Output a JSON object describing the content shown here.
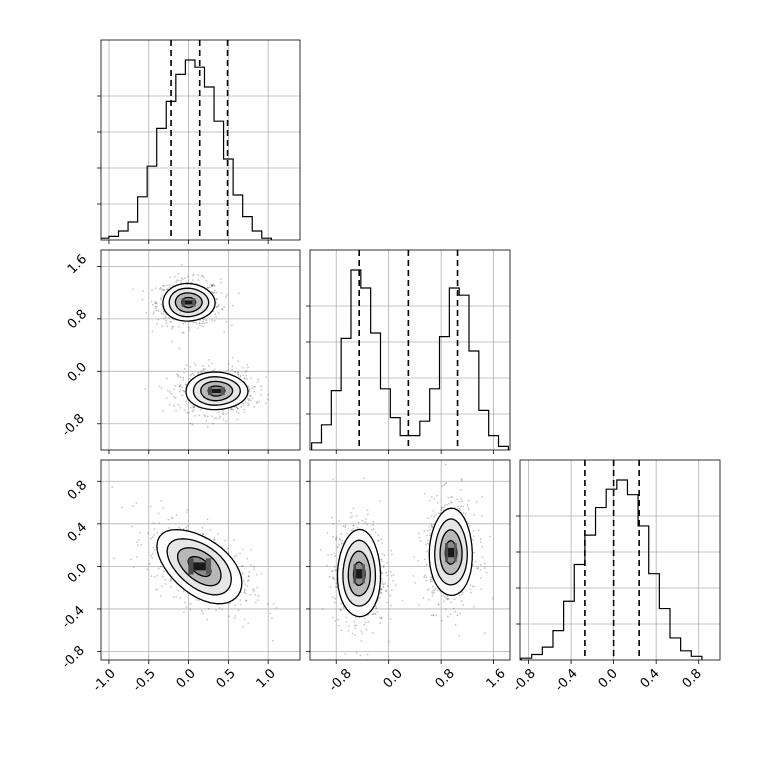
{
  "chart_data": {
    "type": "corner",
    "axes": {
      "x_ticks": [
        [
          "-1.0",
          "-0.5",
          "0.0",
          "0.5",
          "1.0"
        ],
        [
          "-0.8",
          "0.0",
          "0.8",
          "1.6"
        ],
        [
          "-0.8",
          "-0.4",
          "0.0",
          "0.4",
          "0.8"
        ]
      ],
      "y_ticks": {
        "row1": [
          "-0.8",
          "0.0",
          "0.8",
          "1.6"
        ],
        "row2": [
          "-0.8",
          "-0.4",
          "0.0",
          "0.4",
          "0.8"
        ]
      },
      "ranges": {
        "p0": [
          -1.1,
          1.4
        ],
        "p1": [
          -1.2,
          1.85
        ],
        "p2": [
          -0.88,
          1.0
        ]
      }
    },
    "quantiles": {
      "p0": [
        -0.22,
        0.14,
        0.49
      ],
      "p1": [
        -0.45,
        0.3,
        1.05
      ],
      "p2": [
        -0.27,
        0.0,
        0.24
      ]
    },
    "histograms": {
      "p0": {
        "bins": [
          -1.06,
          -0.94,
          -0.82,
          -0.7,
          -0.58,
          -0.46,
          -0.34,
          -0.22,
          -0.1,
          0.02,
          0.14,
          0.26,
          0.38,
          0.5,
          0.62,
          0.74,
          0.86,
          0.98
        ],
        "counts": [
          1,
          2,
          5,
          10,
          24,
          41,
          62,
          77,
          92,
          100,
          96,
          85,
          66,
          45,
          25,
          13,
          5,
          1
        ]
      },
      "p1": {
        "bins": [
          -1.1,
          -0.95,
          -0.8,
          -0.65,
          -0.5,
          -0.35,
          -0.2,
          -0.05,
          0.1,
          0.25,
          0.4,
          0.55,
          0.7,
          0.85,
          1.0,
          1.15,
          1.3,
          1.45,
          1.6,
          1.75
        ],
        "counts": [
          4,
          14,
          33,
          62,
          100,
          90,
          65,
          34,
          18,
          8,
          8,
          16,
          34,
          63,
          90,
          86,
          55,
          22,
          8,
          2
        ]
      },
      "p2": {
        "bins": [
          -0.82,
          -0.72,
          -0.62,
          -0.52,
          -0.42,
          -0.32,
          -0.22,
          -0.12,
          -0.02,
          0.08,
          0.18,
          0.28,
          0.38,
          0.48,
          0.58,
          0.68,
          0.78
        ],
        "counts": [
          1,
          3,
          7,
          16,
          32,
          52,
          68,
          83,
          93,
          98,
          90,
          73,
          47,
          28,
          12,
          5,
          2
        ]
      }
    },
    "density_panels": [
      {
        "x": "p0",
        "y": "p1",
        "clusters": [
          {
            "center": [
              0.0,
              1.05
            ],
            "sigma": [
              0.16,
              0.14
            ],
            "corr": 0.0
          },
          {
            "center": [
              0.35,
              -0.3
            ],
            "sigma": [
              0.19,
              0.14
            ],
            "corr": 0.0
          }
        ]
      },
      {
        "x": "p0",
        "y": "p2",
        "clusters": [
          {
            "center": [
              0.14,
              0.0
            ],
            "sigma": [
              0.26,
              0.17
            ],
            "corr": -0.5
          }
        ]
      },
      {
        "x": "p1",
        "y": "p2",
        "clusters": [
          {
            "center": [
              -0.45,
              -0.07
            ],
            "sigma": [
              0.16,
              0.2
            ],
            "corr": 0.0
          },
          {
            "center": [
              0.95,
              0.13
            ],
            "sigma": [
              0.16,
              0.2
            ],
            "corr": 0.0
          }
        ]
      }
    ],
    "grid": true,
    "legend": "none"
  }
}
